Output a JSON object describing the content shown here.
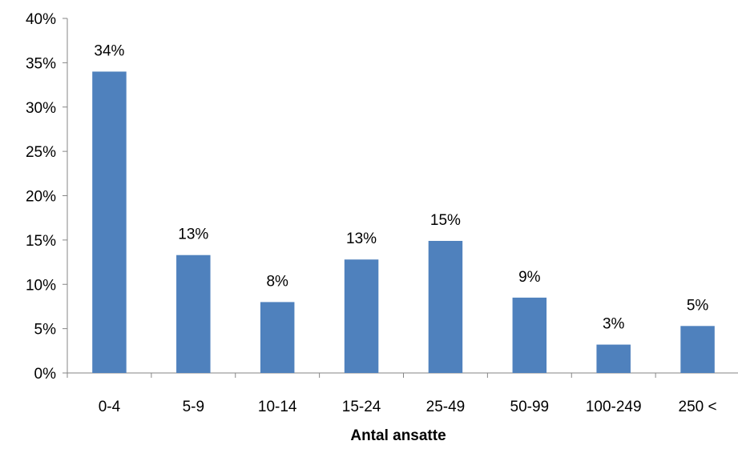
{
  "chart_data": {
    "type": "bar",
    "title": "",
    "xlabel": "Antal ansatte",
    "ylabel": "",
    "categories": [
      "0-4",
      "5-9",
      "10-14",
      "15-24",
      "25-49",
      "50-99",
      "100-249",
      "250 <"
    ],
    "values": [
      34,
      13.3,
      8,
      12.8,
      14.9,
      8.5,
      3.2,
      5.3
    ],
    "data_labels": [
      "34%",
      "13%",
      "8%",
      "13%",
      "15%",
      "9%",
      "3%",
      "5%"
    ],
    "ylim": [
      0,
      40
    ],
    "y_ticks": [
      0,
      5,
      10,
      15,
      20,
      25,
      30,
      35,
      40
    ],
    "y_tick_labels": [
      "0%",
      "5%",
      "10%",
      "15%",
      "20%",
      "25%",
      "30%",
      "35%",
      "40%"
    ],
    "grid": false,
    "legend": "none",
    "colors": {
      "bar": "#4f81bd",
      "axis": "#868686"
    }
  }
}
